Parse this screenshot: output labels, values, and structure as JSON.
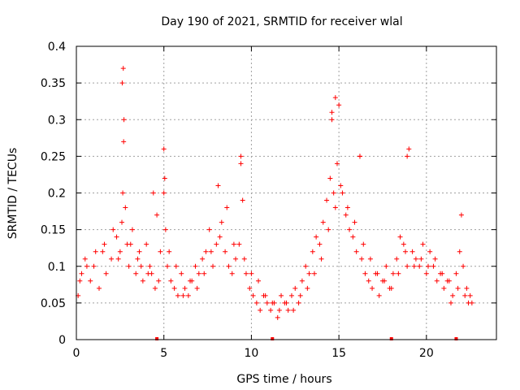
{
  "chart_data": {
    "type": "scatter",
    "title": "Day 190 of 2021, SRMTID for receiver wlal",
    "xlabel": "GPS time / hours",
    "ylabel": "SRMTID / TECUs",
    "xlim": [
      0,
      24
    ],
    "ylim": [
      0,
      0.4
    ],
    "xticks": [
      0,
      5,
      10,
      15,
      20
    ],
    "xtick_labels": [
      "0",
      "5",
      "10",
      "15",
      "20"
    ],
    "yticks": [
      0,
      0.05,
      0.1,
      0.15,
      0.2,
      0.25,
      0.3,
      0.35,
      0.4
    ],
    "ytick_labels": [
      "0",
      "0.05",
      "0.1",
      "0.15",
      "0.2",
      "0.25",
      "0.3",
      "0.35",
      "0.4"
    ],
    "grid": true,
    "marker": "plus",
    "color": "#ff0000",
    "series": [
      {
        "name": "SRMTID",
        "x": [
          0.1,
          0.3,
          0.5,
          0.8,
          1.0,
          1.3,
          1.5,
          1.7,
          2.0,
          2.3,
          2.5,
          2.6,
          2.65,
          2.7,
          2.8,
          2.9,
          3.0,
          3.2,
          3.4,
          3.5,
          3.6,
          3.8,
          4.0,
          4.2,
          4.3,
          4.5,
          4.6,
          4.8,
          5.0,
          5.0,
          5.1,
          5.2,
          5.4,
          5.6,
          5.8,
          6.0,
          6.2,
          6.4,
          6.6,
          6.8,
          7.0,
          7.2,
          7.4,
          7.6,
          7.8,
          8.0,
          8.1,
          8.3,
          8.5,
          8.7,
          8.9,
          9.1,
          9.3,
          9.4,
          9.5,
          9.7,
          9.9,
          10.1,
          10.3,
          10.5,
          10.7,
          10.9,
          11.1,
          11.3,
          11.5,
          11.7,
          11.9,
          12.1,
          12.3,
          12.5,
          12.7,
          12.9,
          13.1,
          13.3,
          13.5,
          13.7,
          13.9,
          14.1,
          14.3,
          14.5,
          14.6,
          14.7,
          14.8,
          14.9,
          15.0,
          15.2,
          15.4,
          15.6,
          15.8,
          16.0,
          16.2,
          16.3,
          16.5,
          16.7,
          16.9,
          17.1,
          17.3,
          17.5,
          17.7,
          17.9,
          18.1,
          18.3,
          18.5,
          18.7,
          18.9,
          19.0,
          19.2,
          19.4,
          19.6,
          19.8,
          20.0,
          20.2,
          20.4,
          20.6,
          20.8,
          21.0,
          21.2,
          21.4,
          21.5,
          21.7,
          21.9,
          22.1,
          22.3,
          22.5,
          22.6,
          0.2,
          0.6,
          1.1,
          1.6,
          2.1,
          2.4,
          3.1,
          3.7,
          4.1,
          4.7,
          5.3,
          5.7,
          6.1,
          6.5,
          6.9,
          7.3,
          7.7,
          8.2,
          8.6,
          9.0,
          9.6,
          10.0,
          10.4,
          10.8,
          11.2,
          11.6,
          12.0,
          12.4,
          12.8,
          13.2,
          13.6,
          14.0,
          14.4,
          15.1,
          15.5,
          15.9,
          16.4,
          16.8,
          17.2,
          17.6,
          18.0,
          18.4,
          18.8,
          19.3,
          19.7,
          20.1,
          20.5,
          20.9,
          21.3,
          21.8,
          22.2,
          22.4,
          2.62,
          2.68,
          2.72,
          4.4,
          5.05,
          9.4,
          14.6,
          14.8,
          16.2,
          18.9,
          22.0
        ],
        "y": [
          0.06,
          0.09,
          0.11,
          0.08,
          0.1,
          0.07,
          0.12,
          0.09,
          0.11,
          0.14,
          0.12,
          0.16,
          0.2,
          0.27,
          0.18,
          0.13,
          0.1,
          0.15,
          0.09,
          0.11,
          0.12,
          0.08,
          0.13,
          0.1,
          0.09,
          0.07,
          0.17,
          0.12,
          0.2,
          0.26,
          0.15,
          0.1,
          0.08,
          0.07,
          0.06,
          0.09,
          0.07,
          0.06,
          0.08,
          0.1,
          0.09,
          0.11,
          0.12,
          0.15,
          0.1,
          0.13,
          0.21,
          0.16,
          0.12,
          0.1,
          0.09,
          0.11,
          0.13,
          0.24,
          0.19,
          0.09,
          0.07,
          0.06,
          0.05,
          0.04,
          0.06,
          0.05,
          0.04,
          0.05,
          0.03,
          0.06,
          0.05,
          0.04,
          0.06,
          0.07,
          0.05,
          0.08,
          0.1,
          0.09,
          0.12,
          0.14,
          0.13,
          0.16,
          0.19,
          0.22,
          0.3,
          0.2,
          0.18,
          0.24,
          0.32,
          0.2,
          0.17,
          0.15,
          0.14,
          0.12,
          0.25,
          0.11,
          0.09,
          0.08,
          0.07,
          0.09,
          0.06,
          0.08,
          0.1,
          0.07,
          0.09,
          0.11,
          0.14,
          0.13,
          0.1,
          0.26,
          0.12,
          0.11,
          0.1,
          0.13,
          0.09,
          0.12,
          0.1,
          0.08,
          0.09,
          0.07,
          0.08,
          0.05,
          0.06,
          0.09,
          0.12,
          0.1,
          0.07,
          0.06,
          0.05,
          0.08,
          0.1,
          0.12,
          0.13,
          0.15,
          0.11,
          0.13,
          0.1,
          0.09,
          0.08,
          0.12,
          0.1,
          0.06,
          0.08,
          0.07,
          0.09,
          0.12,
          0.14,
          0.18,
          0.13,
          0.11,
          0.09,
          0.08,
          0.06,
          0.05,
          0.04,
          0.05,
          0.04,
          0.06,
          0.07,
          0.09,
          0.11,
          0.15,
          0.21,
          0.18,
          0.16,
          0.13,
          0.11,
          0.09,
          0.08,
          0.07,
          0.09,
          0.12,
          0.1,
          0.11,
          0.1,
          0.11,
          0.09,
          0.08,
          0.07,
          0.06,
          0.05,
          0.35,
          0.37,
          0.3,
          0.2,
          0.22,
          0.25,
          0.31,
          0.33,
          0.25,
          0.25,
          0.17
        ]
      }
    ],
    "axis_markers_x": [
      4.6,
      11.2,
      18.0,
      21.7
    ]
  }
}
